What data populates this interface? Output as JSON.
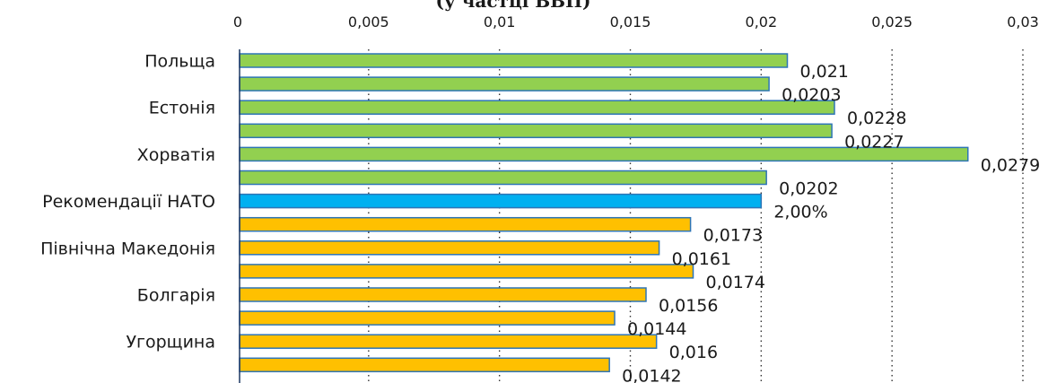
{
  "chart_data": {
    "type": "bar",
    "orientation": "horizontal",
    "title": "(у частці ВВП)",
    "x_ticks": [
      "0",
      "0,005",
      "0,01",
      "0,015",
      "0,02",
      "0,025",
      "0,03"
    ],
    "xlim": [
      0,
      0.03
    ],
    "grid": "vertical dotted",
    "category_labels": [
      "Польща",
      "",
      "Естонія",
      "",
      "Хорватія",
      "",
      "Рекомендації НАТО",
      "",
      "Північна Македонія",
      "",
      "Болгарія",
      "",
      "Угорщина",
      ""
    ],
    "values": [
      0.021,
      0.0203,
      0.0228,
      0.0227,
      0.0279,
      0.0202,
      0.02,
      0.0173,
      0.0161,
      0.0174,
      0.0156,
      0.0144,
      0.016,
      0.0142
    ],
    "data_labels": [
      "0,021",
      "0,0203",
      "0,0228",
      "0,0227",
      "0,0279",
      "0,0202",
      "2,00%",
      "0,0173",
      "0,0161",
      "0,0174",
      "0,0156",
      "0,0144",
      "0,016",
      "0,0142"
    ],
    "bar_colors": [
      "#92d050",
      "#92d050",
      "#92d050",
      "#92d050",
      "#92d050",
      "#92d050",
      "#00b0f0",
      "#ffc000",
      "#ffc000",
      "#ffc000",
      "#ffc000",
      "#ffc000",
      "#ffc000",
      "#ffc000"
    ],
    "bar_border_color": "#2e75b6"
  }
}
